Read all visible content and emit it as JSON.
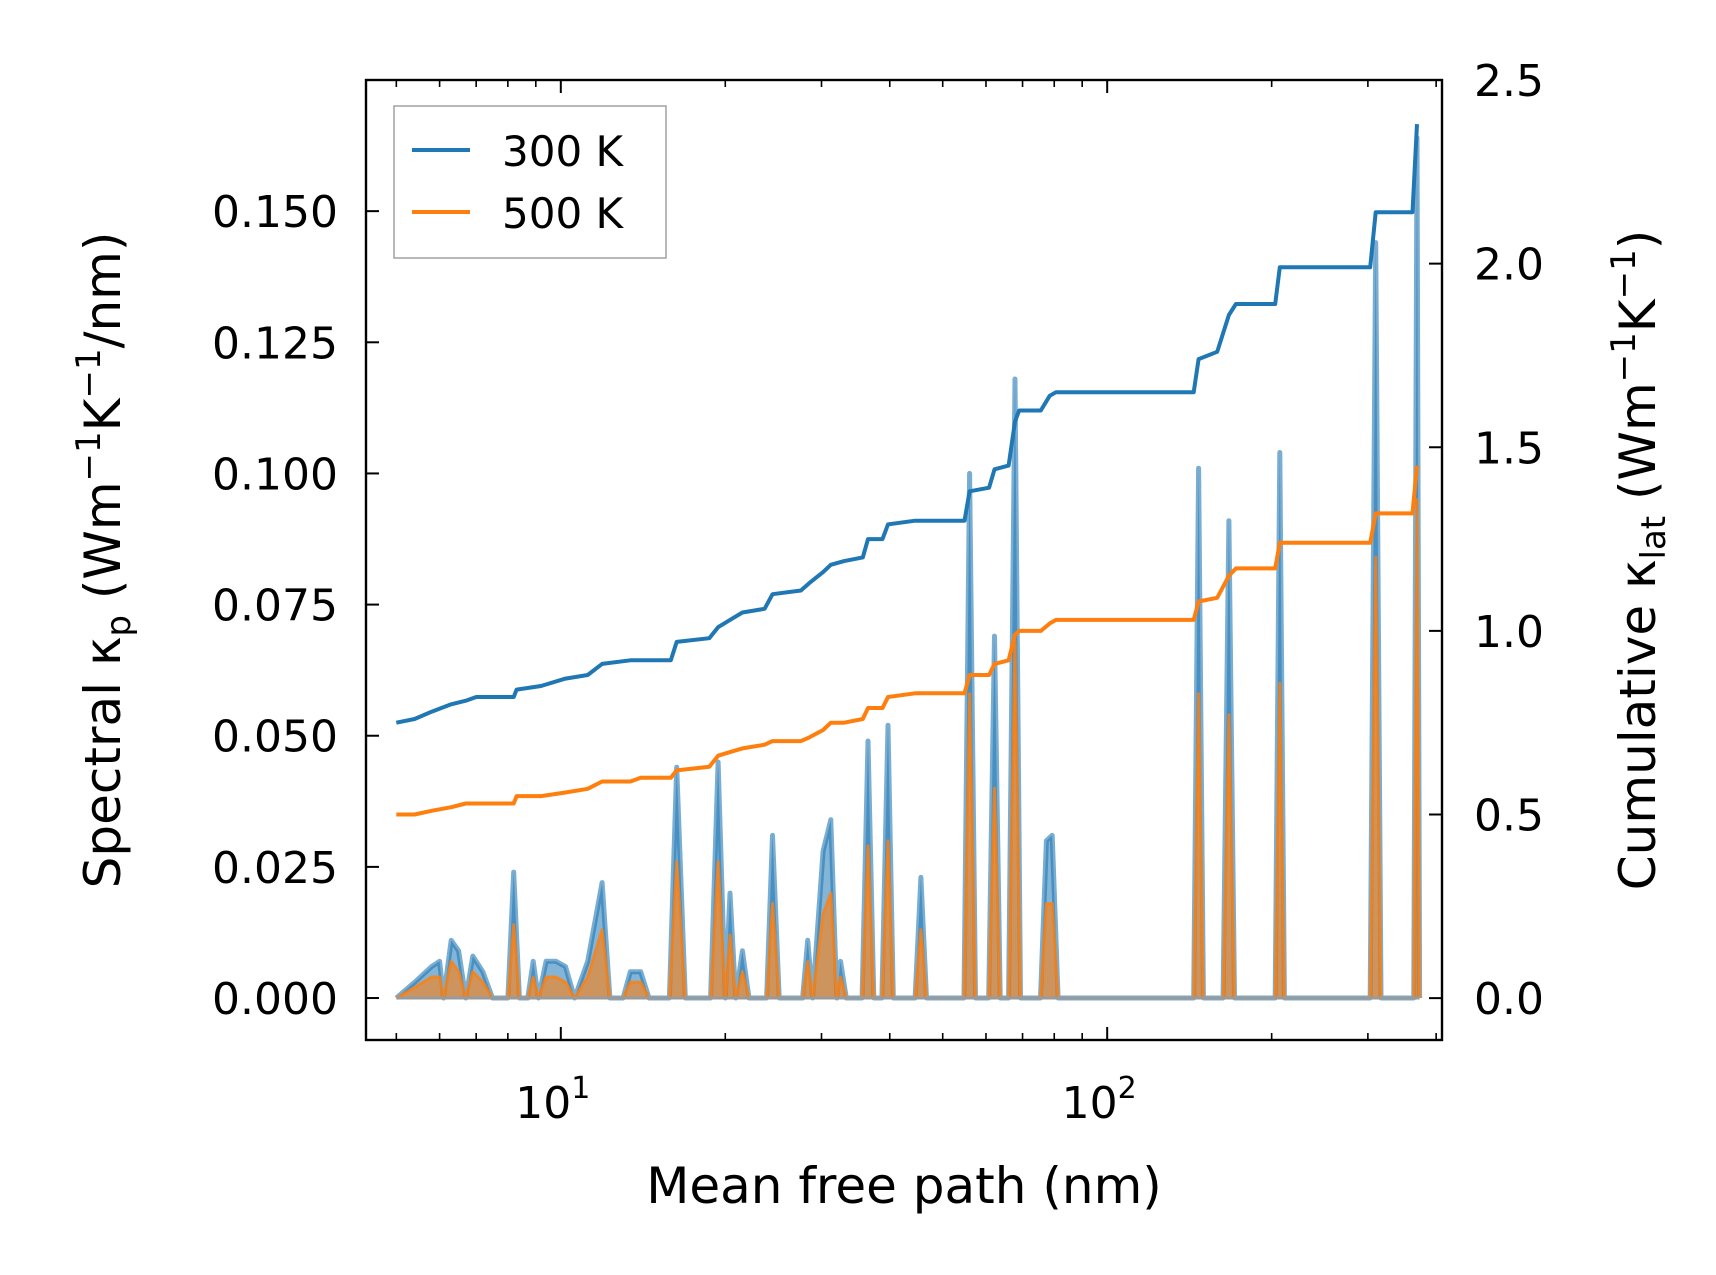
{
  "chart_data": {
    "type": "line",
    "xscale": "log",
    "xlabel": "Mean free path (nm)",
    "ylabel_left": {
      "main": "Spectral κ",
      "sub": "p",
      "units": " (Wm",
      "units_parts": [
        " (Wm",
        "−1",
        "K",
        "−1",
        "/nm)"
      ]
    },
    "ylabel_right": {
      "main": "Cumulative κ",
      "sub": "lat",
      "units_parts": [
        " (Wm",
        "−1",
        "K",
        "−1",
        ")"
      ]
    },
    "xlim": [
      4.4,
      410
    ],
    "ylim_left": [
      -0.008,
      0.175
    ],
    "ylim_right": [
      -0.114,
      2.5
    ],
    "x_ticks": [
      {
        "value": 10,
        "base": "10",
        "exp": "1"
      },
      {
        "value": 100,
        "base": "10",
        "exp": "2"
      }
    ],
    "y_left_ticks": [
      {
        "value": 0.0,
        "label": "0.000"
      },
      {
        "value": 0.025,
        "label": "0.025"
      },
      {
        "value": 0.05,
        "label": "0.050"
      },
      {
        "value": 0.075,
        "label": "0.075"
      },
      {
        "value": 0.1,
        "label": "0.100"
      },
      {
        "value": 0.125,
        "label": "0.125"
      },
      {
        "value": 0.15,
        "label": "0.150"
      }
    ],
    "y_right_ticks": [
      {
        "value": 0.0,
        "label": "0.0"
      },
      {
        "value": 0.5,
        "label": "0.5"
      },
      {
        "value": 1.0,
        "label": "1.0"
      },
      {
        "value": 1.5,
        "label": "1.5"
      },
      {
        "value": 2.0,
        "label": "2.0"
      },
      {
        "value": 2.5,
        "label": "2.5"
      }
    ],
    "legend": {
      "position": "upper-left",
      "entries": [
        {
          "label": "300 K",
          "color": "#1f77b4"
        },
        {
          "label": "500 K",
          "color": "#ff7f0e"
        }
      ]
    },
    "spectral_series": [
      {
        "name": "300 K",
        "color": "#1f77b4",
        "points": [
          [
            5.0,
            0.0
          ],
          [
            5.4,
            0.003
          ],
          [
            5.8,
            0.006
          ],
          [
            6.0,
            0.007
          ],
          [
            6.1,
            0.0
          ],
          [
            6.3,
            0.011
          ],
          [
            6.5,
            0.009
          ],
          [
            6.7,
            0.0
          ],
          [
            6.9,
            0.008
          ],
          [
            7.2,
            0.005
          ],
          [
            7.5,
            0.0
          ],
          [
            8.0,
            0.0
          ],
          [
            8.2,
            0.024
          ],
          [
            8.4,
            0.0
          ],
          [
            8.7,
            0.0
          ],
          [
            8.9,
            0.007
          ],
          [
            9.1,
            0.0
          ],
          [
            9.4,
            0.007
          ],
          [
            9.8,
            0.007
          ],
          [
            10.2,
            0.006
          ],
          [
            10.6,
            0.0
          ],
          [
            11.2,
            0.007
          ],
          [
            11.9,
            0.022
          ],
          [
            12.3,
            0.0
          ],
          [
            13.0,
            0.0
          ],
          [
            13.4,
            0.005
          ],
          [
            14.0,
            0.005
          ],
          [
            14.5,
            0.0
          ],
          [
            15.8,
            0.0
          ],
          [
            16.3,
            0.044
          ],
          [
            16.9,
            0.0
          ],
          [
            18.8,
            0.0
          ],
          [
            19.4,
            0.045
          ],
          [
            20.0,
            0.0
          ],
          [
            20.4,
            0.02
          ],
          [
            20.9,
            0.0
          ],
          [
            21.5,
            0.009
          ],
          [
            22.1,
            0.0
          ],
          [
            23.8,
            0.0
          ],
          [
            24.4,
            0.031
          ],
          [
            25.1,
            0.0
          ],
          [
            27.7,
            0.0
          ],
          [
            28.3,
            0.011
          ],
          [
            28.9,
            0.0
          ],
          [
            30.2,
            0.028
          ],
          [
            31.2,
            0.034
          ],
          [
            32.0,
            0.0
          ],
          [
            32.5,
            0.007
          ],
          [
            33.3,
            0.0
          ],
          [
            35.6,
            0.0
          ],
          [
            36.5,
            0.049
          ],
          [
            37.4,
            0.0
          ],
          [
            38.7,
            0.0
          ],
          [
            39.7,
            0.052
          ],
          [
            40.6,
            0.0
          ],
          [
            44.5,
            0.0
          ],
          [
            45.6,
            0.023
          ],
          [
            46.7,
            0.0
          ],
          [
            54.7,
            0.0
          ],
          [
            56.0,
            0.1
          ],
          [
            57.4,
            0.0
          ],
          [
            60.7,
            0.0
          ],
          [
            62.2,
            0.069
          ],
          [
            63.7,
            0.0
          ],
          [
            66.0,
            0.0
          ],
          [
            67.8,
            0.118
          ],
          [
            69.4,
            0.0
          ],
          [
            75.5,
            0.0
          ],
          [
            77.4,
            0.03
          ],
          [
            79.3,
            0.031
          ],
          [
            81.3,
            0.0
          ],
          [
            144.0,
            0.0
          ],
          [
            147.0,
            0.101
          ],
          [
            150.0,
            0.0
          ],
          [
            163.0,
            0.0
          ],
          [
            167.0,
            0.091
          ],
          [
            171.0,
            0.0
          ],
          [
            203.0,
            0.0
          ],
          [
            207.0,
            0.104
          ],
          [
            211.0,
            0.0
          ],
          [
            303.0,
            0.0
          ],
          [
            310.0,
            0.144
          ],
          [
            317.0,
            0.0
          ],
          [
            364.0,
            0.0
          ],
          [
            369.0,
            0.164
          ],
          [
            373.0,
            0.0
          ]
        ]
      },
      {
        "name": "500 K",
        "color": "#ff7f0e",
        "points": [
          [
            5.0,
            0.0
          ],
          [
            5.4,
            0.002
          ],
          [
            5.8,
            0.004
          ],
          [
            6.0,
            0.004
          ],
          [
            6.1,
            0.0
          ],
          [
            6.3,
            0.007
          ],
          [
            6.5,
            0.005
          ],
          [
            6.7,
            0.0
          ],
          [
            6.9,
            0.005
          ],
          [
            7.2,
            0.003
          ],
          [
            7.5,
            0.0
          ],
          [
            8.0,
            0.0
          ],
          [
            8.2,
            0.014
          ],
          [
            8.4,
            0.0
          ],
          [
            8.7,
            0.0
          ],
          [
            8.9,
            0.004
          ],
          [
            9.1,
            0.0
          ],
          [
            9.4,
            0.004
          ],
          [
            9.8,
            0.004
          ],
          [
            10.2,
            0.003
          ],
          [
            10.6,
            0.0
          ],
          [
            11.2,
            0.004
          ],
          [
            11.9,
            0.013
          ],
          [
            12.3,
            0.0
          ],
          [
            13.0,
            0.0
          ],
          [
            13.4,
            0.003
          ],
          [
            14.0,
            0.003
          ],
          [
            14.5,
            0.0
          ],
          [
            15.8,
            0.0
          ],
          [
            16.3,
            0.026
          ],
          [
            16.9,
            0.0
          ],
          [
            18.8,
            0.0
          ],
          [
            19.4,
            0.026
          ],
          [
            20.0,
            0.0
          ],
          [
            20.4,
            0.012
          ],
          [
            20.9,
            0.0
          ],
          [
            21.5,
            0.005
          ],
          [
            22.1,
            0.0
          ],
          [
            23.8,
            0.0
          ],
          [
            24.4,
            0.018
          ],
          [
            25.1,
            0.0
          ],
          [
            27.7,
            0.0
          ],
          [
            28.3,
            0.007
          ],
          [
            28.9,
            0.0
          ],
          [
            30.2,
            0.016
          ],
          [
            31.2,
            0.02
          ],
          [
            32.0,
            0.0
          ],
          [
            32.5,
            0.004
          ],
          [
            33.3,
            0.0
          ],
          [
            35.6,
            0.0
          ],
          [
            36.5,
            0.029
          ],
          [
            37.4,
            0.0
          ],
          [
            38.7,
            0.0
          ],
          [
            39.7,
            0.03
          ],
          [
            40.6,
            0.0
          ],
          [
            44.5,
            0.0
          ],
          [
            45.6,
            0.013
          ],
          [
            46.7,
            0.0
          ],
          [
            54.7,
            0.0
          ],
          [
            56.0,
            0.058
          ],
          [
            57.4,
            0.0
          ],
          [
            60.7,
            0.0
          ],
          [
            62.2,
            0.04
          ],
          [
            63.7,
            0.0
          ],
          [
            66.0,
            0.0
          ],
          [
            67.8,
            0.068
          ],
          [
            69.4,
            0.0
          ],
          [
            75.5,
            0.0
          ],
          [
            77.4,
            0.018
          ],
          [
            79.3,
            0.018
          ],
          [
            81.3,
            0.0
          ],
          [
            144.0,
            0.0
          ],
          [
            147.0,
            0.058
          ],
          [
            150.0,
            0.0
          ],
          [
            163.0,
            0.0
          ],
          [
            167.0,
            0.054
          ],
          [
            171.0,
            0.0
          ],
          [
            203.0,
            0.0
          ],
          [
            207.0,
            0.06
          ],
          [
            211.0,
            0.0
          ],
          [
            303.0,
            0.0
          ],
          [
            310.0,
            0.084
          ],
          [
            317.0,
            0.0
          ],
          [
            364.0,
            0.0
          ],
          [
            369.0,
            0.095
          ],
          [
            373.0,
            0.0
          ]
        ]
      }
    ],
    "cumulative_series": [
      {
        "name": "300 K",
        "color": "#1f77b4",
        "points": [
          [
            5.0,
            0.75
          ],
          [
            5.4,
            0.76
          ],
          [
            5.8,
            0.78
          ],
          [
            6.3,
            0.8
          ],
          [
            6.7,
            0.81
          ],
          [
            7.0,
            0.82
          ],
          [
            8.2,
            0.82
          ],
          [
            8.3,
            0.84
          ],
          [
            9.2,
            0.85
          ],
          [
            10.2,
            0.87
          ],
          [
            11.2,
            0.88
          ],
          [
            11.9,
            0.91
          ],
          [
            13.4,
            0.92
          ],
          [
            14.0,
            0.92
          ],
          [
            15.9,
            0.92
          ],
          [
            16.3,
            0.97
          ],
          [
            18.7,
            0.98
          ],
          [
            19.4,
            1.01
          ],
          [
            20.4,
            1.03
          ],
          [
            21.5,
            1.05
          ],
          [
            23.6,
            1.06
          ],
          [
            24.4,
            1.1
          ],
          [
            27.5,
            1.11
          ],
          [
            28.5,
            1.13
          ],
          [
            30.2,
            1.16
          ],
          [
            31.2,
            1.18
          ],
          [
            33.0,
            1.19
          ],
          [
            35.7,
            1.2
          ],
          [
            36.5,
            1.25
          ],
          [
            38.8,
            1.25
          ],
          [
            39.7,
            1.29
          ],
          [
            44.5,
            1.3
          ],
          [
            54.8,
            1.3
          ],
          [
            56.0,
            1.38
          ],
          [
            60.8,
            1.39
          ],
          [
            62.2,
            1.44
          ],
          [
            66.0,
            1.45
          ],
          [
            67.8,
            1.57
          ],
          [
            69.0,
            1.6
          ],
          [
            75.6,
            1.6
          ],
          [
            78.5,
            1.64
          ],
          [
            80.6,
            1.65
          ],
          [
            144.0,
            1.65
          ],
          [
            147.0,
            1.74
          ],
          [
            159.0,
            1.76
          ],
          [
            167.0,
            1.86
          ],
          [
            172.0,
            1.89
          ],
          [
            203.0,
            1.89
          ],
          [
            207.0,
            1.99
          ],
          [
            303.0,
            1.99
          ],
          [
            310.0,
            2.14
          ],
          [
            362.0,
            2.14
          ],
          [
            369.0,
            2.38
          ]
        ]
      },
      {
        "name": "500 K",
        "color": "#ff7f0e",
        "points": [
          [
            5.0,
            0.5
          ],
          [
            5.4,
            0.5
          ],
          [
            5.8,
            0.51
          ],
          [
            6.3,
            0.52
          ],
          [
            6.7,
            0.53
          ],
          [
            7.0,
            0.53
          ],
          [
            8.2,
            0.53
          ],
          [
            8.3,
            0.55
          ],
          [
            9.2,
            0.55
          ],
          [
            10.2,
            0.56
          ],
          [
            11.2,
            0.57
          ],
          [
            11.9,
            0.59
          ],
          [
            13.4,
            0.59
          ],
          [
            14.0,
            0.6
          ],
          [
            15.9,
            0.6
          ],
          [
            16.3,
            0.62
          ],
          [
            18.7,
            0.63
          ],
          [
            19.4,
            0.66
          ],
          [
            20.4,
            0.67
          ],
          [
            21.5,
            0.68
          ],
          [
            23.6,
            0.69
          ],
          [
            24.4,
            0.7
          ],
          [
            27.5,
            0.7
          ],
          [
            28.5,
            0.71
          ],
          [
            30.2,
            0.73
          ],
          [
            31.2,
            0.75
          ],
          [
            33.0,
            0.75
          ],
          [
            35.7,
            0.76
          ],
          [
            36.5,
            0.79
          ],
          [
            38.8,
            0.79
          ],
          [
            39.7,
            0.82
          ],
          [
            44.5,
            0.83
          ],
          [
            54.8,
            0.83
          ],
          [
            56.0,
            0.88
          ],
          [
            60.8,
            0.88
          ],
          [
            62.2,
            0.91
          ],
          [
            66.0,
            0.92
          ],
          [
            67.8,
            0.99
          ],
          [
            69.0,
            1.0
          ],
          [
            75.6,
            1.0
          ],
          [
            78.5,
            1.02
          ],
          [
            80.6,
            1.03
          ],
          [
            144.0,
            1.03
          ],
          [
            147.0,
            1.08
          ],
          [
            159.0,
            1.09
          ],
          [
            167.0,
            1.15
          ],
          [
            172.0,
            1.17
          ],
          [
            203.0,
            1.17
          ],
          [
            207.0,
            1.24
          ],
          [
            303.0,
            1.24
          ],
          [
            310.0,
            1.32
          ],
          [
            362.0,
            1.32
          ],
          [
            369.0,
            1.45
          ]
        ]
      }
    ]
  }
}
